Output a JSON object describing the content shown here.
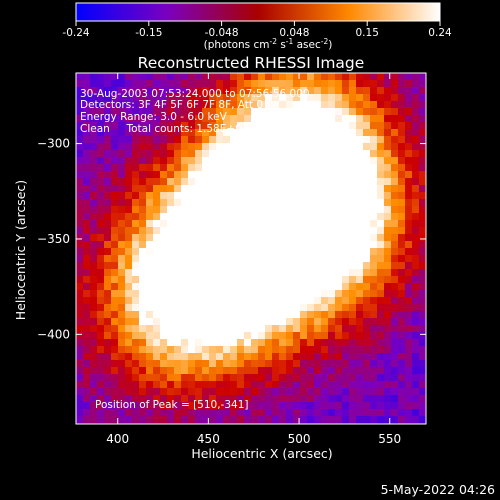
{
  "colorbar": {
    "ticks": [
      "-0.24",
      "-0.15",
      "-0.048",
      "0.048",
      "0.15",
      "0.24"
    ],
    "units_prefix": "(photons cm",
    "units_exp1": "-2",
    "units_mid": " s",
    "units_exp2": "-1",
    "units_asec": " asec",
    "units_exp3": "-2",
    "units_suffix": ")"
  },
  "title": "Reconstructed RHESSI Image",
  "info": {
    "line1": "30-Aug-2003 07:53:24.000 to 07:56:56.000",
    "line2": "Detectors: 3F 4F 5F 6F 7F 8F, Att 0",
    "line3": "Energy Range: 3.0 - 6.0 keV",
    "line4": "Clean     Total counts: 1.58E+04",
    "peak": "Position of Peak = [510,-341]"
  },
  "timestamp": "5-May-2022 04:26",
  "colors": {
    "background": "#000000",
    "colormap": [
      "#0000ff",
      "#7a00c0",
      "#cc0000",
      "#ff8c00",
      "#ffffff"
    ]
  },
  "chart_data": {
    "type": "heatmap",
    "title": "Reconstructed RHESSI Image",
    "xlabel": "Heliocentric X (arcsec)",
    "ylabel": "Heliocentric Y (arcsec)",
    "xlim": [
      377,
      570
    ],
    "ylim": [
      -447,
      -263
    ],
    "xticks": [
      400,
      450,
      500,
      550
    ],
    "yticks": [
      -300,
      -350,
      -400
    ],
    "value_range": [
      -0.24,
      0.24
    ],
    "peak": {
      "x": 510,
      "y": -341
    },
    "sources": [
      {
        "x": 500,
        "y": -301,
        "value": 0.24
      },
      {
        "x": 480,
        "y": -345,
        "value": 0.22
      },
      {
        "x": 455,
        "y": -362,
        "value": 0.19
      },
      {
        "x": 512,
        "y": -341,
        "value": 0.23
      },
      {
        "x": 432,
        "y": -385,
        "value": 0.14
      }
    ],
    "grid": false
  }
}
